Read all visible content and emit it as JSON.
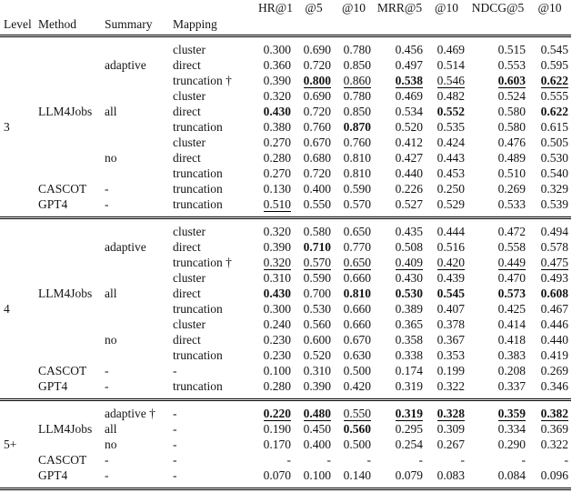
{
  "header": {
    "left": [
      "Level",
      "Method",
      "Summary",
      "Mapping"
    ],
    "metrics": [
      "HR@1",
      "@5",
      "@10",
      "MRR@5",
      "@10",
      "NDCG@5",
      "@10"
    ]
  },
  "blocks": [
    {
      "level_label": "3",
      "rows": [
        {
          "level": "",
          "method": "",
          "summary": "",
          "mapping": "cluster",
          "values": [
            "0.300",
            "0.690",
            "0.780",
            "0.456",
            "0.469",
            "0.515",
            "0.545"
          ]
        },
        {
          "level": "",
          "method": "",
          "summary": "adaptive",
          "mapping": "direct",
          "values": [
            "0.360",
            "0.720",
            "0.850",
            "0.497",
            "0.514",
            "0.553",
            "0.595"
          ]
        },
        {
          "level": "",
          "method": "",
          "summary": "",
          "mapping": "truncation †",
          "values": [
            "0.390",
            "0.800",
            "0.860",
            "0.538",
            "0.546",
            "0.603",
            "0.622"
          ],
          "fmt": [
            "",
            "bu",
            "u",
            "bu",
            "u",
            "bu",
            "bu"
          ]
        },
        {
          "level": "",
          "method": "",
          "summary": "",
          "mapping": "cluster",
          "values": [
            "0.320",
            "0.690",
            "0.780",
            "0.469",
            "0.482",
            "0.524",
            "0.555"
          ]
        },
        {
          "level": "",
          "method": "LLM4Jobs",
          "summary": "all",
          "mapping": "direct",
          "values": [
            "0.430",
            "0.720",
            "0.850",
            "0.534",
            "0.552",
            "0.580",
            "0.622"
          ],
          "fmt": [
            "b",
            "",
            "",
            "",
            "b",
            "",
            "b"
          ]
        },
        {
          "level": "3",
          "method": "",
          "summary": "",
          "mapping": "truncation",
          "values": [
            "0.380",
            "0.760",
            "0.870",
            "0.520",
            "0.535",
            "0.580",
            "0.615"
          ],
          "fmt": [
            "",
            "",
            "b",
            "",
            "",
            "",
            ""
          ]
        },
        {
          "level": "",
          "method": "",
          "summary": "",
          "mapping": "cluster",
          "values": [
            "0.270",
            "0.670",
            "0.760",
            "0.412",
            "0.424",
            "0.476",
            "0.505"
          ]
        },
        {
          "level": "",
          "method": "",
          "summary": "no",
          "mapping": "direct",
          "values": [
            "0.280",
            "0.680",
            "0.810",
            "0.427",
            "0.443",
            "0.489",
            "0.530"
          ]
        },
        {
          "level": "",
          "method": "",
          "summary": "",
          "mapping": "truncation",
          "values": [
            "0.270",
            "0.720",
            "0.810",
            "0.440",
            "0.453",
            "0.510",
            "0.540"
          ]
        },
        {
          "level": "",
          "method": "CASCOT",
          "summary": "-",
          "mapping": "truncation",
          "values": [
            "0.130",
            "0.400",
            "0.590",
            "0.226",
            "0.250",
            "0.269",
            "0.329"
          ]
        },
        {
          "level": "",
          "method": "GPT4",
          "summary": "-",
          "mapping": "truncation",
          "values": [
            "0.510",
            "0.550",
            "0.570",
            "0.527",
            "0.529",
            "0.533",
            "0.539"
          ],
          "fmt": [
            "u",
            "",
            "",
            "",
            "",
            "",
            ""
          ]
        }
      ]
    },
    {
      "level_label": "4",
      "rows": [
        {
          "level": "",
          "method": "",
          "summary": "",
          "mapping": "cluster",
          "values": [
            "0.320",
            "0.580",
            "0.650",
            "0.435",
            "0.444",
            "0.472",
            "0.494"
          ]
        },
        {
          "level": "",
          "method": "",
          "summary": "adaptive",
          "mapping": "direct",
          "values": [
            "0.390",
            "0.710",
            "0.770",
            "0.508",
            "0.516",
            "0.558",
            "0.578"
          ],
          "fmt": [
            "",
            "b",
            "",
            "",
            "",
            "",
            ""
          ]
        },
        {
          "level": "",
          "method": "",
          "summary": "",
          "mapping": "truncation †",
          "values": [
            "0.320",
            "0.570",
            "0.650",
            "0.409",
            "0.420",
            "0.449",
            "0.475"
          ],
          "fmt": [
            "u",
            "u",
            "u",
            "u",
            "u",
            "u",
            "u"
          ]
        },
        {
          "level": "",
          "method": "",
          "summary": "",
          "mapping": "cluster",
          "values": [
            "0.310",
            "0.590",
            "0.660",
            "0.430",
            "0.439",
            "0.470",
            "0.493"
          ]
        },
        {
          "level": "",
          "method": "LLM4Jobs",
          "summary": "all",
          "mapping": "direct",
          "values": [
            "0.430",
            "0.700",
            "0.810",
            "0.530",
            "0.545",
            "0.573",
            "0.608"
          ],
          "fmt": [
            "b",
            "",
            "b",
            "b",
            "b",
            "b",
            "b"
          ]
        },
        {
          "level": "4",
          "method": "",
          "summary": "",
          "mapping": "truncation",
          "values": [
            "0.300",
            "0.530",
            "0.660",
            "0.389",
            "0.407",
            "0.425",
            "0.467"
          ]
        },
        {
          "level": "",
          "method": "",
          "summary": "",
          "mapping": "cluster",
          "values": [
            "0.240",
            "0.560",
            "0.660",
            "0.365",
            "0.378",
            "0.414",
            "0.446"
          ]
        },
        {
          "level": "",
          "method": "",
          "summary": "no",
          "mapping": "direct",
          "values": [
            "0.230",
            "0.600",
            "0.670",
            "0.358",
            "0.367",
            "0.418",
            "0.440"
          ]
        },
        {
          "level": "",
          "method": "",
          "summary": "",
          "mapping": "truncation",
          "values": [
            "0.230",
            "0.520",
            "0.630",
            "0.338",
            "0.353",
            "0.383",
            "0.419"
          ]
        },
        {
          "level": "",
          "method": "CASCOT",
          "summary": "-",
          "mapping": "-",
          "values": [
            "0.100",
            "0.310",
            "0.500",
            "0.174",
            "0.199",
            "0.208",
            "0.269"
          ]
        },
        {
          "level": "",
          "method": "GPT4",
          "summary": "-",
          "mapping": "truncation",
          "values": [
            "0.280",
            "0.390",
            "0.420",
            "0.319",
            "0.322",
            "0.337",
            "0.346"
          ]
        }
      ]
    },
    {
      "level_label": "5+",
      "rows": [
        {
          "level": "",
          "method": "",
          "summary": "adaptive †",
          "mapping": "-",
          "values": [
            "0.220",
            "0.480",
            "0.550",
            "0.319",
            "0.328",
            "0.359",
            "0.382"
          ],
          "fmt": [
            "bu",
            "bu",
            "u",
            "bu",
            "bu",
            "bu",
            "bu"
          ]
        },
        {
          "level": "",
          "method": "LLM4Jobs",
          "summary": "all",
          "mapping": "-",
          "values": [
            "0.190",
            "0.450",
            "0.560",
            "0.295",
            "0.309",
            "0.334",
            "0.369"
          ],
          "fmt": [
            "",
            "",
            "b",
            "",
            "",
            "",
            ""
          ]
        },
        {
          "level": "5+",
          "method": "",
          "summary": "no",
          "mapping": "-",
          "values": [
            "0.170",
            "0.400",
            "0.500",
            "0.254",
            "0.267",
            "0.290",
            "0.322"
          ]
        },
        {
          "level": "",
          "method": "CASCOT",
          "summary": "-",
          "mapping": "-",
          "values": [
            "-",
            "-",
            "-",
            "-",
            "-",
            "-",
            "-"
          ]
        },
        {
          "level": "",
          "method": "GPT4",
          "summary": "-",
          "mapping": "-",
          "values": [
            "0.070",
            "0.100",
            "0.140",
            "0.079",
            "0.083",
            "0.084",
            "0.096"
          ]
        }
      ]
    }
  ]
}
